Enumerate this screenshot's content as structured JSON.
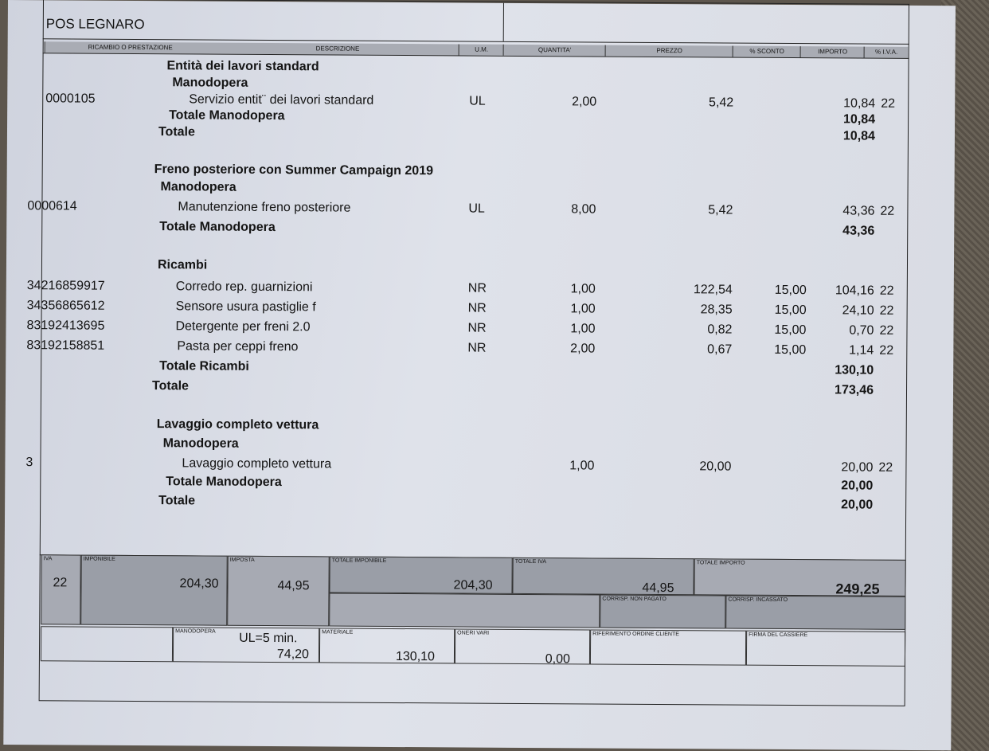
{
  "header": {
    "title": "POS LEGNARO"
  },
  "columns": [
    "RICAMBIO O PRESTAZIONE",
    "DESCRIZIONE",
    "U.M.",
    "QUANTITA'",
    "PREZZO",
    "% SCONTO",
    "IMPORTO",
    "% I.V.A."
  ],
  "lines": [
    {
      "desc": "Entità dei lavori standard",
      "bold": true
    },
    {
      "desc": "Manodopera",
      "bold": true
    },
    {
      "code": "0000105",
      "desc": "Servizio entit¨ dei lavori standard",
      "um": "UL",
      "qty": "2,00",
      "price": "5,42",
      "amount": "10,84",
      "vat": "22"
    },
    {
      "desc": "Totale Manodopera",
      "bold": true,
      "amount": "10,84"
    },
    {
      "desc": "Totale",
      "bold": true,
      "amount": "10,84"
    },
    {
      "desc": "Freno posteriore con Summer Campaign 2019",
      "bold": true
    },
    {
      "desc": "Manodopera",
      "bold": true
    },
    {
      "code": "0000614",
      "desc": "Manutenzione freno posteriore",
      "um": "UL",
      "qty": "8,00",
      "price": "5,42",
      "amount": "43,36",
      "vat": "22"
    },
    {
      "desc": "Totale Manodopera",
      "bold": true,
      "amount": "43,36"
    },
    {
      "desc": "Ricambi",
      "bold": true
    },
    {
      "code": "34216859917",
      "desc": "Corredo rep. guarnizioni",
      "um": "NR",
      "qty": "1,00",
      "price": "122,54",
      "discount": "15,00",
      "amount": "104,16",
      "vat": "22"
    },
    {
      "code": "34356865612",
      "desc": "Sensore usura pastiglie f",
      "um": "NR",
      "qty": "1,00",
      "price": "28,35",
      "discount": "15,00",
      "amount": "24,10",
      "vat": "22"
    },
    {
      "code": "83192413695",
      "desc": "Detergente per freni 2.0",
      "um": "NR",
      "qty": "1,00",
      "price": "0,82",
      "discount": "15,00",
      "amount": "0,70",
      "vat": "22"
    },
    {
      "code": "83192158851",
      "desc": "Pasta per ceppi freno",
      "um": "NR",
      "qty": "2,00",
      "price": "0,67",
      "discount": "15,00",
      "amount": "1,14",
      "vat": "22"
    },
    {
      "desc": "Totale Ricambi",
      "bold": true,
      "amount": "130,10"
    },
    {
      "desc": "Totale",
      "bold": true,
      "amount": "173,46"
    },
    {
      "desc": "Lavaggio completo vettura",
      "bold": true
    },
    {
      "desc": "Manodopera",
      "bold": true
    },
    {
      "code": "3",
      "desc": "Lavaggio completo vettura",
      "qty": "1,00",
      "price": "20,00",
      "amount": "20,00",
      "vat": "22"
    },
    {
      "desc": "Totale Manodopera",
      "bold": true,
      "amount": "20,00"
    },
    {
      "desc": "Totale",
      "bold": true,
      "amount": "20,00"
    }
  ],
  "summary": {
    "iva_label": "IVA",
    "iva": "22",
    "imponibile_label": "IMPONIBILE",
    "imponibile": "204,30",
    "imposta_label": "IMPOSTA",
    "imposta": "44,95",
    "totale_imponibile_label": "TOTALE IMPONIBILE",
    "totale_imponibile": "204,30",
    "totale_iva_label": "TOTALE IVA",
    "totale_iva": "44,95",
    "totale_importo_label": "TOTALE IMPORTO",
    "totale_importo": "249,25",
    "corrisp_non_pagato_label": "CORRISP. NON PAGATO",
    "corrisp_incassato_label": "CORRISP. INCASSATO",
    "manodopera_label": "MANODOPERA",
    "ul_note": "UL=5 min.",
    "manodopera": "74,20",
    "materiale_label": "MATERIALE",
    "materiale": "130,10",
    "oneri_vari_label": "ONERI VARI",
    "oneri_vari": "0,00",
    "riferimento_label": "RIFERIMENTO ORDINE CLIENTE",
    "firma_label": "FIRMA DEL CASSIERE"
  }
}
